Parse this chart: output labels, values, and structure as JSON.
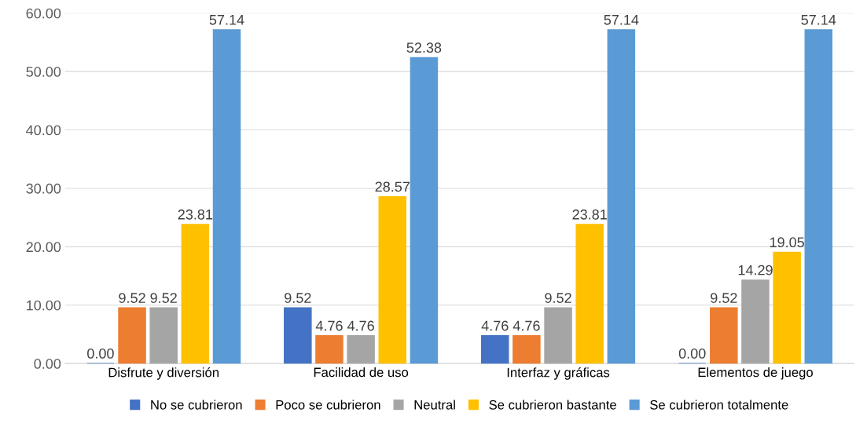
{
  "chart_data": {
    "type": "bar",
    "categories": [
      "Disfrute y diversión",
      "Facilidad de uso",
      "Interfaz y gráficas",
      "Elementos de juego"
    ],
    "series": [
      {
        "name": "No se cubrieron",
        "color": "#4472c4",
        "values": [
          0.0,
          9.52,
          4.76,
          0.0
        ],
        "value_labels": [
          "0.00",
          "9.52",
          "4.76",
          "0.00"
        ]
      },
      {
        "name": "Poco se cubrieron",
        "color": "#ed7d31",
        "values": [
          9.52,
          4.76,
          4.76,
          9.52
        ],
        "value_labels": [
          "9.52",
          "4.76",
          "4.76",
          "9.52"
        ]
      },
      {
        "name": "Neutral",
        "color": "#a5a5a5",
        "values": [
          9.52,
          4.76,
          9.52,
          14.29
        ],
        "value_labels": [
          "9.52",
          "4.76",
          "9.52",
          "14.29"
        ]
      },
      {
        "name": "Se cubrieron bastante",
        "color": "#ffc000",
        "values": [
          23.81,
          28.57,
          23.81,
          19.05
        ],
        "value_labels": [
          "23.81",
          "28.57",
          "23.81",
          "19.05"
        ]
      },
      {
        "name": "Se cubrieron totalmente",
        "color": "#5b9bd5",
        "values": [
          57.14,
          52.38,
          57.14,
          57.14
        ],
        "value_labels": [
          "57.14",
          "52.38",
          "57.14",
          "57.14"
        ]
      }
    ],
    "ylim": [
      0,
      60
    ],
    "yticks": [
      {
        "value": 0,
        "label": "0.00"
      },
      {
        "value": 10,
        "label": "10.00"
      },
      {
        "value": 20,
        "label": "20.00"
      },
      {
        "value": 30,
        "label": "30.00"
      },
      {
        "value": 40,
        "label": "40.00"
      },
      {
        "value": 50,
        "label": "50.00"
      },
      {
        "value": 60,
        "label": "60.00"
      }
    ],
    "grid": "y",
    "legend": "bottom"
  }
}
